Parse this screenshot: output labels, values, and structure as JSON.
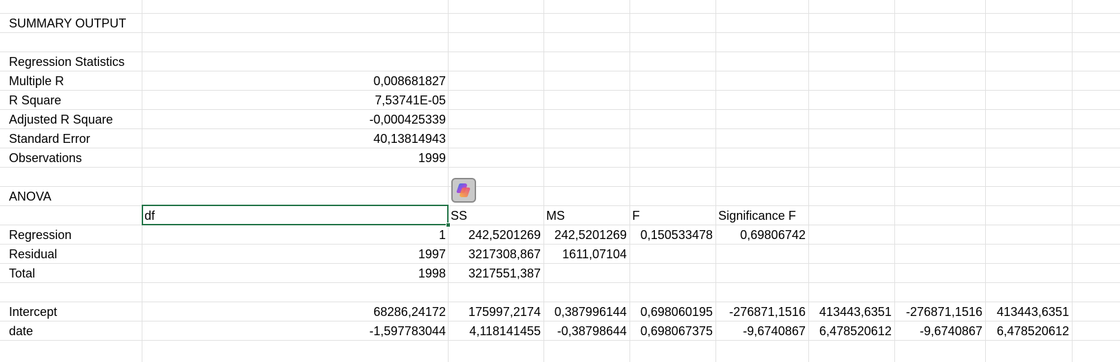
{
  "summary": {
    "title": "SUMMARY OUTPUT"
  },
  "regression_stats": {
    "header": "Regression Statistics",
    "rows": [
      {
        "label": "Multiple R",
        "value": "0,008681827"
      },
      {
        "label": "R Square",
        "value": "7,53741E-05"
      },
      {
        "label": "Adjusted R Square",
        "value": "-0,000425339"
      },
      {
        "label": "Standard Error",
        "value": "40,13814943"
      },
      {
        "label": "Observations",
        "value": "1999"
      }
    ]
  },
  "anova": {
    "title": "ANOVA",
    "headers": {
      "df": "df",
      "ss": "SS",
      "ms": "MS",
      "f": "F",
      "sig": "Significance F"
    },
    "rows": [
      {
        "label": "Regression",
        "df": "1",
        "ss": "242,5201269",
        "ms": "242,5201269",
        "f": "0,150533478",
        "sig": "0,69806742"
      },
      {
        "label": "Residual",
        "df": "1997",
        "ss": "3217308,867",
        "ms": "1611,07104",
        "f": "",
        "sig": ""
      },
      {
        "label": "Total",
        "df": "1998",
        "ss": "3217551,387",
        "ms": "",
        "f": "",
        "sig": ""
      }
    ]
  },
  "coefficients": {
    "rows": [
      {
        "label": "Intercept",
        "c1": "68286,24172",
        "c2": "175997,2174",
        "c3": "0,387996144",
        "c4": "0,698060195",
        "c5": "-276871,1516",
        "c6": "413443,6351",
        "c7": "-276871,1516",
        "c8": "413443,6351"
      },
      {
        "label": "date",
        "c1": "-1,597783044",
        "c2": "4,118141455",
        "c3": "-0,38798644",
        "c4": "0,698067375",
        "c5": "-9,6740867",
        "c6": "6,478520612",
        "c7": "-9,6740867",
        "c8": "6,478520612"
      }
    ]
  },
  "icons": {
    "copilot": "copilot-icon"
  },
  "colors": {
    "selection": "#217346",
    "gridline": "#e1e1e1"
  }
}
